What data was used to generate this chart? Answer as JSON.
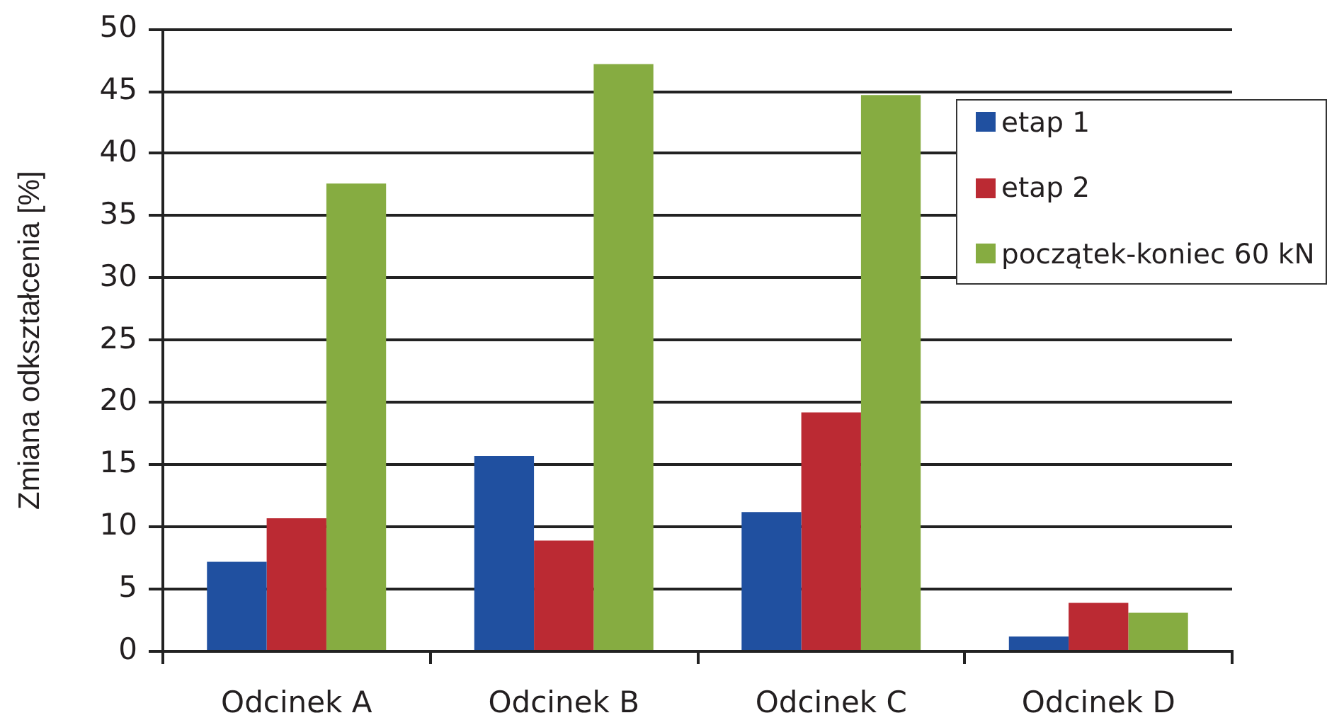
{
  "chart_data": {
    "type": "bar",
    "ylabel": "Zmiana odkształcenia [%]",
    "categories": [
      "Odcinek A",
      "Odcinek B",
      "Odcinek C",
      "Odcinek D"
    ],
    "series": [
      {
        "name": "etap 1",
        "color": "#2050a0",
        "values": [
          7.2,
          15.7,
          11.2,
          1.2
        ]
      },
      {
        "name": "etap 2",
        "color": "#bb2a33",
        "values": [
          10.7,
          8.9,
          19.2,
          3.9
        ]
      },
      {
        "name": "początek-koniec 60 kN",
        "color": "#86ac41",
        "values": [
          37.6,
          47.2,
          44.7,
          3.1
        ]
      }
    ],
    "ylim": [
      0,
      50
    ],
    "yticks": [
      0,
      5,
      10,
      15,
      20,
      25,
      30,
      35,
      40,
      45,
      50
    ],
    "grid": "y",
    "legend": "top right"
  }
}
